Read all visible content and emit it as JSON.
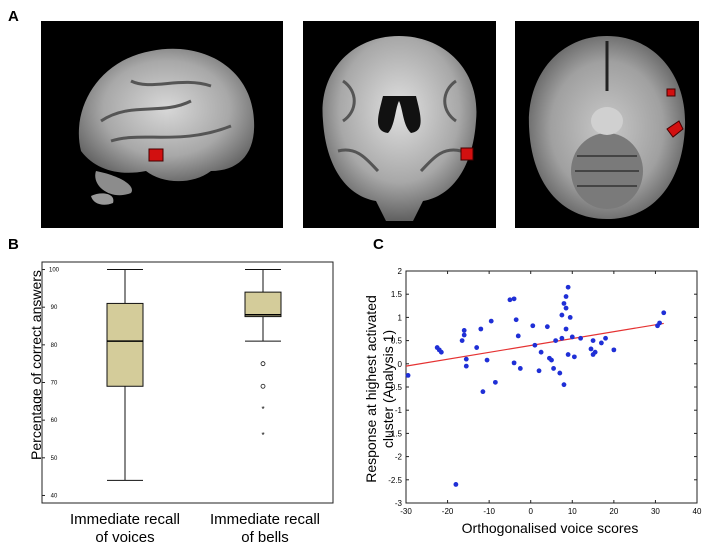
{
  "panels": {
    "a": "A",
    "b": "B",
    "c": "C"
  },
  "panel_b": {
    "ylabel": "Percentage of correct answers",
    "categories": [
      {
        "line1": "Immediate recall",
        "line2": "of voices"
      },
      {
        "line1": "Immediate recall",
        "line2": "of bells"
      }
    ]
  },
  "panel_c": {
    "ylabel_line1": "Response at highest activated",
    "ylabel_line2": "cluster (Analysis 1)",
    "xlabel": "Orthogonalised voice scores"
  },
  "chart_data": [
    {
      "type": "box",
      "categories": [
        "Immediate recall of voices",
        "Immediate recall of bells"
      ],
      "ylabel": "Percentage of correct answers",
      "ylim": [
        38,
        102
      ],
      "yticks": [
        40,
        50,
        60,
        70,
        80,
        90,
        100
      ],
      "boxes": [
        {
          "min": 44,
          "q1": 69,
          "median": 81,
          "q3": 91,
          "max": 100,
          "outliers": [],
          "extremes": []
        },
        {
          "min": 81,
          "q1": 87.5,
          "median": 88,
          "q3": 94,
          "max": 100,
          "outliers": [
            75,
            69
          ],
          "extremes": [
            63,
            56
          ]
        }
      ],
      "box_color": "#d4cc9a"
    },
    {
      "type": "scatter",
      "xlabel": "Orthogonalised voice scores",
      "ylabel": "Response at highest activated cluster (Analysis 1)",
      "xlim": [
        -30,
        40
      ],
      "ylim": [
        -3,
        2
      ],
      "xticks": [
        -30,
        -20,
        -10,
        0,
        10,
        20,
        30,
        40
      ],
      "yticks": [
        -3,
        -2.5,
        -2,
        -1.5,
        -1,
        -0.5,
        0,
        0.5,
        1,
        1.5,
        2
      ],
      "point_color": "#1f2fd6",
      "fit_color": "#e53232",
      "fit_line": {
        "x": [
          -30,
          32
        ],
        "y": [
          -0.05,
          0.87
        ]
      },
      "points": [
        {
          "x": -29.5,
          "y": -0.25
        },
        {
          "x": -22.5,
          "y": 0.35
        },
        {
          "x": -22,
          "y": 0.3
        },
        {
          "x": -21.5,
          "y": 0.25
        },
        {
          "x": -18,
          "y": -2.6
        },
        {
          "x": -16.5,
          "y": 0.5
        },
        {
          "x": -16,
          "y": 0.62
        },
        {
          "x": -16,
          "y": 0.72
        },
        {
          "x": -15.5,
          "y": 0.1
        },
        {
          "x": -15.5,
          "y": -0.05
        },
        {
          "x": -13,
          "y": 0.35
        },
        {
          "x": -12,
          "y": 0.75
        },
        {
          "x": -11.5,
          "y": -0.6
        },
        {
          "x": -10.5,
          "y": 0.08
        },
        {
          "x": -9.5,
          "y": 0.92
        },
        {
          "x": -8.5,
          "y": -0.4
        },
        {
          "x": -5,
          "y": 1.38
        },
        {
          "x": -4,
          "y": 1.4
        },
        {
          "x": -4,
          "y": 0.02
        },
        {
          "x": -3,
          "y": 0.6
        },
        {
          "x": -3.5,
          "y": 0.95
        },
        {
          "x": -2.5,
          "y": -0.1
        },
        {
          "x": 0.5,
          "y": 0.82
        },
        {
          "x": 1,
          "y": 0.4
        },
        {
          "x": 2,
          "y": -0.15
        },
        {
          "x": 2.5,
          "y": 0.25
        },
        {
          "x": 4,
          "y": 0.8
        },
        {
          "x": 4.5,
          "y": 0.12
        },
        {
          "x": 5,
          "y": 0.08
        },
        {
          "x": 5.5,
          "y": -0.1
        },
        {
          "x": 6,
          "y": 0.5
        },
        {
          "x": 7,
          "y": -0.2
        },
        {
          "x": 7.5,
          "y": 1.05
        },
        {
          "x": 7.5,
          "y": 0.55
        },
        {
          "x": 8,
          "y": -0.45
        },
        {
          "x": 8,
          "y": 1.3
        },
        {
          "x": 8.5,
          "y": 1.45
        },
        {
          "x": 8.5,
          "y": 1.2
        },
        {
          "x": 8.5,
          "y": 0.75
        },
        {
          "x": 9,
          "y": 1.65
        },
        {
          "x": 9,
          "y": 0.2
        },
        {
          "x": 9.5,
          "y": 1.0
        },
        {
          "x": 10,
          "y": 0.58
        },
        {
          "x": 10.5,
          "y": 0.15
        },
        {
          "x": 12,
          "y": 0.55
        },
        {
          "x": 14.5,
          "y": 0.32
        },
        {
          "x": 15,
          "y": 0.2
        },
        {
          "x": 15,
          "y": 0.5
        },
        {
          "x": 15.5,
          "y": 0.25
        },
        {
          "x": 17,
          "y": 0.45
        },
        {
          "x": 18,
          "y": 0.55
        },
        {
          "x": 20,
          "y": 0.3
        },
        {
          "x": 31,
          "y": 0.88
        },
        {
          "x": 32,
          "y": 1.1
        },
        {
          "x": 30.5,
          "y": 0.82
        }
      ]
    }
  ]
}
